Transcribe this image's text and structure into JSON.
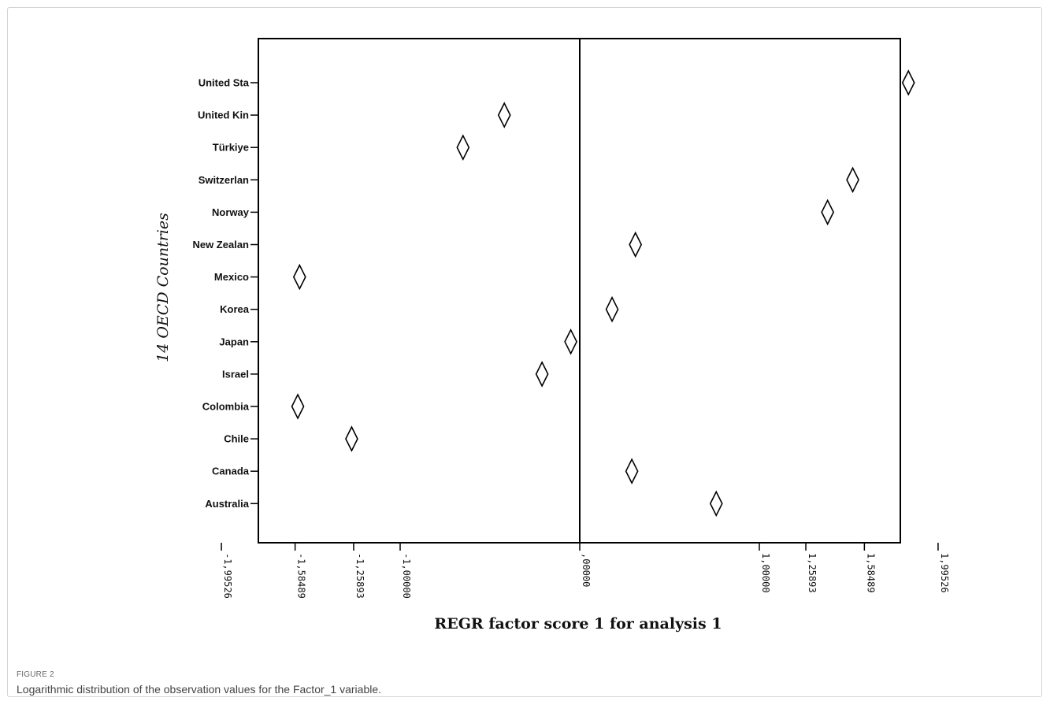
{
  "figure": {
    "label": "FIGURE 2",
    "caption": "Logarithmic distribution of the observation values for the Factor_1 variable."
  },
  "chart_data": {
    "type": "scatter",
    "marker": "diamond",
    "xlabel": "REGR factor score   1 for analysis 1",
    "ylabel": "14 OECD Countries",
    "xlim": [
      -2.2,
      2.1
    ],
    "x_ticks": [
      {
        "value": -1.99526,
        "label": "-1,99526"
      },
      {
        "value": -1.58489,
        "label": "-1,58489"
      },
      {
        "value": -1.25893,
        "label": "-1,25893"
      },
      {
        "value": -1.0,
        "label": "-1,00000"
      },
      {
        "value": 0.0,
        "label": ",00000"
      },
      {
        "value": 1.0,
        "label": "1,00000"
      },
      {
        "value": 1.25893,
        "label": "1,25893"
      },
      {
        "value": 1.58489,
        "label": "1,58489"
      },
      {
        "value": 1.99526,
        "label": "1,99526"
      }
    ],
    "reference_line_x": 0,
    "categories": [
      "United Sta",
      "United Kin",
      "Türkiye",
      "Switzerlan",
      "Norway",
      "New Zealan",
      "Mexico",
      "Korea",
      "Japan",
      "Israel",
      "Colombia",
      "Chile",
      "Canada",
      "Australia"
    ],
    "values": [
      1.83,
      -0.42,
      -0.65,
      1.52,
      1.38,
      0.31,
      -1.56,
      0.18,
      -0.05,
      -0.21,
      -1.57,
      -1.27,
      0.29,
      0.76
    ]
  }
}
